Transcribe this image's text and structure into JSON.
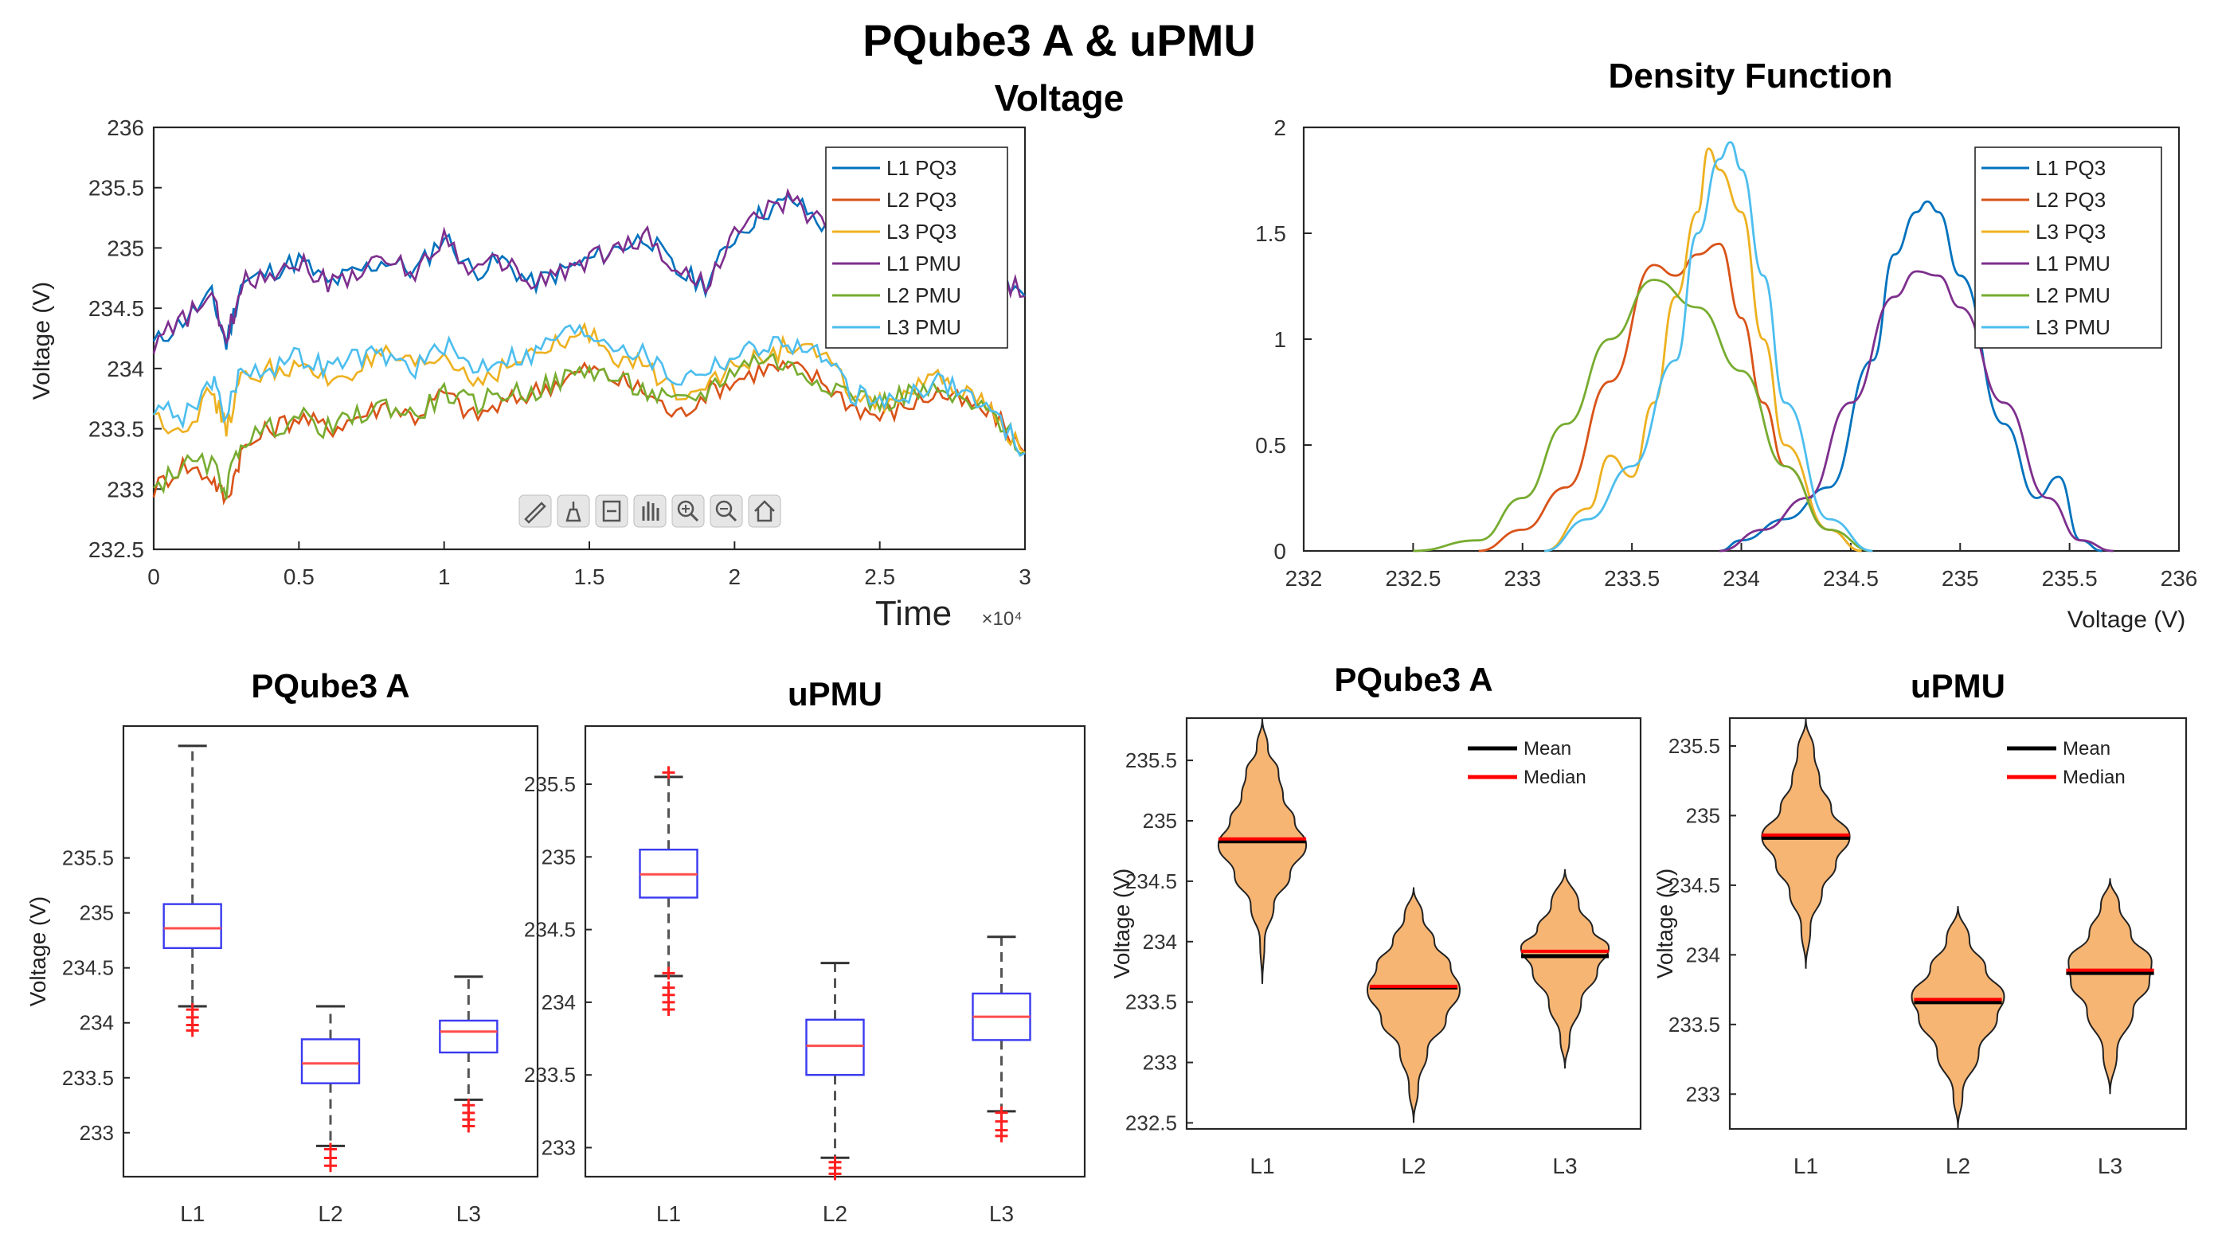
{
  "figure": {
    "title": "PQube3 A & uPMU",
    "subtitle": "Voltage"
  },
  "colors": {
    "L1 PQ3": "#0072BD",
    "L2 PQ3": "#D95319",
    "L3 PQ3": "#EDB120",
    "L1 PMU": "#7E2F8E",
    "L2 PMU": "#77AC30",
    "L3 PMU": "#4DBEEE",
    "box": "#3a3af0",
    "median": "#ff4d4d",
    "outlier": "#ff2020",
    "violin_fill": "#f7b573",
    "mean": "#000000",
    "median_line": "#ff0000"
  },
  "chart_data": [
    {
      "id": "timeseries",
      "type": "line",
      "title": "",
      "xlabel": "Time",
      "x_exponent": "×10⁴",
      "ylabel": "Voltage (V)",
      "xlim": [
        0,
        3
      ],
      "ylim": [
        232.5,
        236
      ],
      "xticks": [
        "0",
        "0.5",
        "1",
        "1.5",
        "2",
        "2.5",
        "3"
      ],
      "yticks": [
        "232.5",
        "233",
        "233.5",
        "234",
        "234.5",
        "235",
        "235.5",
        "236"
      ],
      "legend_position": "top-right",
      "toolbar_icons": [
        "brush-icon",
        "datatip-icon",
        "rotate-icon",
        "pan-icon",
        "zoom-in-icon",
        "zoom-out-icon",
        "home-icon"
      ],
      "x": [
        0,
        0.1,
        0.2,
        0.25,
        0.3,
        0.4,
        0.5,
        0.6,
        0.7,
        0.8,
        0.9,
        1.0,
        1.1,
        1.2,
        1.3,
        1.4,
        1.5,
        1.6,
        1.7,
        1.8,
        1.9,
        2.0,
        2.1,
        2.2,
        2.3,
        2.4,
        2.5,
        2.6,
        2.7,
        2.8,
        2.9,
        3.0
      ],
      "series": [
        {
          "name": "L1 PQ3",
          "values": [
            234.2,
            234.4,
            234.6,
            234.2,
            234.7,
            234.8,
            234.9,
            234.7,
            234.8,
            234.9,
            234.8,
            235.1,
            234.8,
            234.9,
            234.7,
            234.8,
            234.9,
            235.0,
            235.1,
            234.8,
            234.7,
            235.1,
            235.3,
            235.4,
            235.2,
            234.9,
            235.1,
            235.0,
            234.8,
            234.9,
            234.8,
            234.6
          ]
        },
        {
          "name": "L2 PQ3",
          "values": [
            233.0,
            233.2,
            233.1,
            232.9,
            233.3,
            233.5,
            233.6,
            233.5,
            233.6,
            233.7,
            233.6,
            233.8,
            233.6,
            233.7,
            233.8,
            233.9,
            234.0,
            233.9,
            233.8,
            233.6,
            233.8,
            233.9,
            234.0,
            234.0,
            233.9,
            233.7,
            233.6,
            233.7,
            233.8,
            233.7,
            233.6,
            233.3
          ]
        },
        {
          "name": "L3 PQ3",
          "values": [
            233.6,
            233.5,
            233.8,
            233.5,
            233.9,
            234.0,
            234.0,
            233.9,
            234.0,
            234.1,
            234.0,
            234.1,
            233.9,
            234.0,
            234.1,
            234.2,
            234.3,
            234.1,
            234.0,
            233.8,
            233.9,
            234.0,
            234.1,
            234.2,
            234.1,
            233.8,
            233.7,
            233.8,
            233.9,
            233.8,
            233.6,
            233.3
          ]
        },
        {
          "name": "L1 PMU",
          "values": [
            234.2,
            234.4,
            234.6,
            234.2,
            234.7,
            234.8,
            234.9,
            234.7,
            234.8,
            234.9,
            234.8,
            235.1,
            234.8,
            234.9,
            234.7,
            234.8,
            234.9,
            235.0,
            235.1,
            234.8,
            234.7,
            235.1,
            235.3,
            235.4,
            235.2,
            234.9,
            235.1,
            235.0,
            234.8,
            234.9,
            234.8,
            234.6
          ]
        },
        {
          "name": "L2 PMU",
          "values": [
            233.0,
            233.2,
            233.2,
            233.0,
            233.4,
            233.5,
            233.6,
            233.5,
            233.6,
            233.7,
            233.6,
            233.8,
            233.7,
            233.8,
            233.8,
            233.9,
            234.0,
            233.9,
            233.8,
            233.7,
            233.8,
            234.0,
            234.1,
            234.0,
            233.9,
            233.8,
            233.7,
            233.8,
            233.8,
            233.7,
            233.6,
            233.3
          ]
        },
        {
          "name": "L3 PMU",
          "values": [
            233.7,
            233.6,
            233.9,
            233.6,
            234.0,
            234.0,
            234.1,
            234.0,
            234.1,
            234.1,
            234.0,
            234.2,
            234.0,
            234.1,
            234.1,
            234.3,
            234.3,
            234.2,
            234.1,
            233.9,
            234.0,
            234.1,
            234.2,
            234.2,
            234.1,
            233.8,
            233.7,
            233.8,
            233.9,
            233.8,
            233.6,
            233.3
          ]
        }
      ]
    },
    {
      "id": "density",
      "type": "line",
      "title": "Density Function",
      "xlabel": "Voltage (V)",
      "ylabel": "",
      "xlim": [
        232,
        236
      ],
      "ylim": [
        0,
        2
      ],
      "xticks": [
        "232",
        "232.5",
        "233",
        "233.5",
        "234",
        "234.5",
        "235",
        "235.5",
        "236"
      ],
      "yticks": [
        "0",
        "0.5",
        "1",
        "1.5",
        "2"
      ],
      "legend_position": "top-right",
      "series": [
        {
          "name": "L1 PQ3",
          "x": [
            233.9,
            234.0,
            234.2,
            234.4,
            234.6,
            234.7,
            234.8,
            234.85,
            234.9,
            235.0,
            235.2,
            235.35,
            235.45,
            235.55,
            235.65
          ],
          "values": [
            0,
            0.05,
            0.15,
            0.3,
            0.9,
            1.4,
            1.6,
            1.65,
            1.6,
            1.3,
            0.6,
            0.25,
            0.35,
            0.05,
            0
          ]
        },
        {
          "name": "L2 PQ3",
          "x": [
            232.8,
            233.0,
            233.2,
            233.4,
            233.6,
            233.7,
            233.8,
            233.9,
            234.0,
            234.1,
            234.2,
            234.4,
            234.55
          ],
          "values": [
            0,
            0.1,
            0.3,
            0.8,
            1.35,
            1.3,
            1.4,
            1.45,
            1.1,
            0.7,
            0.4,
            0.1,
            0
          ]
        },
        {
          "name": "L3 PQ3",
          "x": [
            233.1,
            233.3,
            233.4,
            233.5,
            233.6,
            233.7,
            233.8,
            233.85,
            233.9,
            234.0,
            234.1,
            234.2,
            234.4,
            234.55
          ],
          "values": [
            0,
            0.2,
            0.45,
            0.35,
            0.7,
            1.2,
            1.6,
            1.9,
            1.8,
            1.6,
            1.0,
            0.5,
            0.1,
            0
          ]
        },
        {
          "name": "L1 PMU",
          "x": [
            233.9,
            234.1,
            234.3,
            234.5,
            234.7,
            234.8,
            234.9,
            235.0,
            235.2,
            235.4,
            235.55,
            235.7
          ],
          "values": [
            0,
            0.1,
            0.25,
            0.7,
            1.2,
            1.32,
            1.3,
            1.15,
            0.7,
            0.25,
            0.05,
            0
          ]
        },
        {
          "name": "L2 PMU",
          "x": [
            232.5,
            232.8,
            233.0,
            233.2,
            233.4,
            233.6,
            233.8,
            234.0,
            234.2,
            234.4,
            234.6
          ],
          "values": [
            0,
            0.05,
            0.25,
            0.6,
            1.0,
            1.28,
            1.15,
            0.85,
            0.4,
            0.1,
            0
          ]
        },
        {
          "name": "L3 PMU",
          "x": [
            233.1,
            233.3,
            233.5,
            233.7,
            233.8,
            233.9,
            233.95,
            234.0,
            234.1,
            234.2,
            234.4,
            234.6
          ],
          "values": [
            0,
            0.15,
            0.4,
            0.9,
            1.5,
            1.85,
            1.93,
            1.8,
            1.3,
            0.7,
            0.15,
            0
          ]
        }
      ]
    },
    {
      "id": "box-pqube",
      "type": "box",
      "title": "PQube3 A",
      "ylabel": "Voltage (V)",
      "ylim": [
        232.6,
        236.7
      ],
      "yticks": [
        "233",
        "233.5",
        "234",
        "234.5",
        "235",
        "235.5"
      ],
      "categories": [
        "L1",
        "L2",
        "L3"
      ],
      "boxes": [
        {
          "whisker_low": 234.15,
          "q1": 234.68,
          "median": 234.86,
          "q3": 235.08,
          "whisker_high": 236.52,
          "outliers": [
            234.12,
            234.05,
            233.98,
            233.93
          ]
        },
        {
          "whisker_low": 232.88,
          "q1": 233.45,
          "median": 233.63,
          "q3": 233.85,
          "whisker_high": 234.15,
          "outliers": [
            232.85,
            232.77,
            232.7
          ]
        },
        {
          "whisker_low": 233.3,
          "q1": 233.73,
          "median": 233.92,
          "q3": 234.02,
          "whisker_high": 234.42,
          "outliers": [
            233.25,
            233.18,
            233.12,
            233.06
          ]
        }
      ]
    },
    {
      "id": "box-upmu",
      "type": "box",
      "title": "uPMU",
      "ylabel": "",
      "ylim": [
        232.8,
        235.9
      ],
      "yticks": [
        "233",
        "233.5",
        "234",
        "234.5",
        "235",
        "235.5"
      ],
      "categories": [
        "L1",
        "L2",
        "L3"
      ],
      "boxes": [
        {
          "whisker_low": 234.18,
          "q1": 234.72,
          "median": 234.88,
          "q3": 235.05,
          "whisker_high": 235.55,
          "outliers": [
            235.58,
            234.2,
            234.1,
            234.05,
            234.0,
            233.95
          ]
        },
        {
          "whisker_low": 232.93,
          "q1": 233.5,
          "median": 233.7,
          "q3": 233.88,
          "whisker_high": 234.27,
          "outliers": [
            232.9,
            232.86,
            232.82
          ]
        },
        {
          "whisker_low": 233.25,
          "q1": 233.74,
          "median": 233.9,
          "q3": 234.06,
          "whisker_high": 234.45,
          "outliers": [
            233.24,
            233.18,
            233.12,
            233.08
          ]
        }
      ]
    },
    {
      "id": "violin-pqube",
      "type": "violin",
      "title": "PQube3 A",
      "ylabel": "Voltage (V)",
      "ylim": [
        232.45,
        235.85
      ],
      "yticks": [
        "232.5",
        "233",
        "233.5",
        "234",
        "234.5",
        "235",
        "235.5"
      ],
      "categories": [
        "L1",
        "L2",
        "L3"
      ],
      "legend": [
        "Mean",
        "Median"
      ],
      "violins": [
        {
          "mean": 234.83,
          "median": 234.85,
          "min": 233.65,
          "max": 235.85,
          "widths": [
            [
              233.65,
              0
            ],
            [
              234.0,
              0.05
            ],
            [
              234.3,
              0.25
            ],
            [
              234.55,
              0.6
            ],
            [
              234.8,
              0.95
            ],
            [
              235.0,
              0.7
            ],
            [
              235.2,
              0.45
            ],
            [
              235.4,
              0.35
            ],
            [
              235.6,
              0.12
            ],
            [
              235.85,
              0
            ]
          ]
        },
        {
          "mean": 233.62,
          "median": 233.63,
          "min": 232.5,
          "max": 234.45,
          "widths": [
            [
              232.5,
              0
            ],
            [
              232.8,
              0.1
            ],
            [
              233.1,
              0.3
            ],
            [
              233.35,
              0.7
            ],
            [
              233.6,
              1.0
            ],
            [
              233.8,
              0.8
            ],
            [
              234.0,
              0.45
            ],
            [
              234.2,
              0.2
            ],
            [
              234.45,
              0
            ]
          ]
        },
        {
          "mean": 233.88,
          "median": 233.92,
          "min": 232.95,
          "max": 234.6,
          "widths": [
            [
              232.95,
              0
            ],
            [
              233.2,
              0.1
            ],
            [
              233.5,
              0.35
            ],
            [
              233.75,
              0.7
            ],
            [
              233.95,
              0.95
            ],
            [
              234.1,
              0.6
            ],
            [
              234.3,
              0.3
            ],
            [
              234.6,
              0
            ]
          ]
        }
      ]
    },
    {
      "id": "violin-upmu",
      "type": "violin",
      "title": "uPMU",
      "ylabel": "Voltage (V)",
      "ylim": [
        232.75,
        235.7
      ],
      "yticks": [
        "233",
        "233.5",
        "234",
        "234.5",
        "235",
        "235.5"
      ],
      "categories": [
        "L1",
        "L2",
        "L3"
      ],
      "legend": [
        "Mean",
        "Median"
      ],
      "violins": [
        {
          "mean": 234.84,
          "median": 234.86,
          "min": 233.9,
          "max": 235.7,
          "widths": [
            [
              233.9,
              0
            ],
            [
              234.2,
              0.1
            ],
            [
              234.45,
              0.35
            ],
            [
              234.65,
              0.65
            ],
            [
              234.85,
              0.95
            ],
            [
              235.05,
              0.55
            ],
            [
              235.25,
              0.3
            ],
            [
              235.45,
              0.18
            ],
            [
              235.7,
              0
            ]
          ]
        },
        {
          "mean": 233.66,
          "median": 233.68,
          "min": 232.75,
          "max": 234.35,
          "widths": [
            [
              232.75,
              0
            ],
            [
              233.0,
              0.1
            ],
            [
              233.3,
              0.45
            ],
            [
              233.55,
              0.85
            ],
            [
              233.7,
              1.0
            ],
            [
              233.9,
              0.6
            ],
            [
              234.1,
              0.25
            ],
            [
              234.35,
              0
            ]
          ]
        },
        {
          "mean": 233.87,
          "median": 233.89,
          "min": 233.0,
          "max": 234.55,
          "widths": [
            [
              233.0,
              0
            ],
            [
              233.3,
              0.15
            ],
            [
              233.6,
              0.5
            ],
            [
              233.8,
              0.85
            ],
            [
              233.95,
              0.9
            ],
            [
              234.15,
              0.45
            ],
            [
              234.35,
              0.2
            ],
            [
              234.55,
              0
            ]
          ]
        }
      ]
    }
  ]
}
